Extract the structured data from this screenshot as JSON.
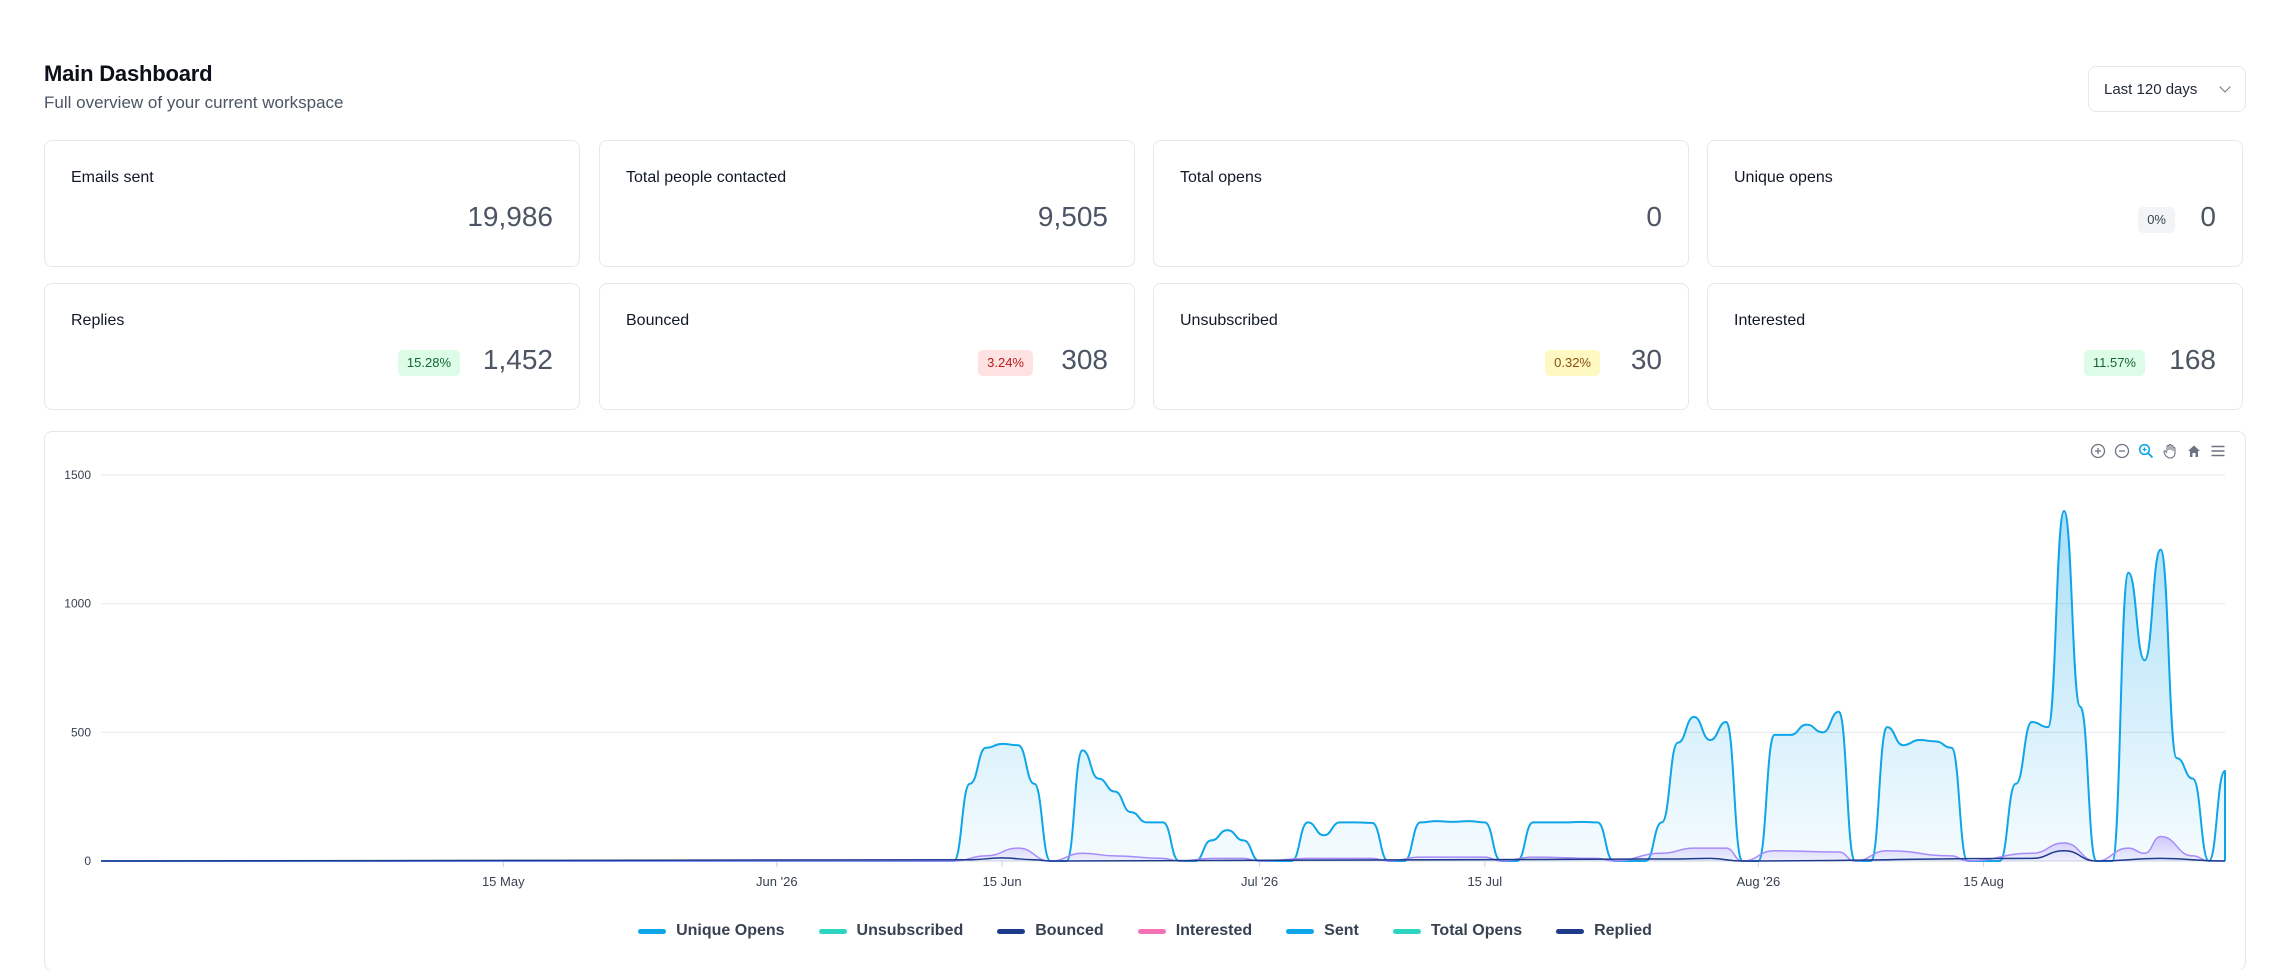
{
  "header": {
    "title": "Main Dashboard",
    "subtitle": "Full overview of your current workspace"
  },
  "range": {
    "selected": "Last 120 days"
  },
  "stats": [
    {
      "label": "Emails sent",
      "value": "19,986"
    },
    {
      "label": "Total people contacted",
      "value": "9,505"
    },
    {
      "label": "Total opens",
      "value": "0"
    },
    {
      "label": "Unique opens",
      "value": "0",
      "badge": "0%",
      "badge_style": "gray"
    },
    {
      "label": "Replies",
      "value": "1,452",
      "badge": "15.28%",
      "badge_style": "green"
    },
    {
      "label": "Bounced",
      "value": "308",
      "badge": "3.24%",
      "badge_style": "red"
    },
    {
      "label": "Unsubscribed",
      "value": "30",
      "badge": "0.32%",
      "badge_style": "yellow"
    },
    {
      "label": "Interested",
      "value": "168",
      "badge": "11.57%",
      "badge_style": "green"
    }
  ],
  "toolbar": [
    "zoom-in-icon",
    "zoom-out-icon",
    "zoom-select-icon",
    "pan-hand-icon",
    "home-reset-icon",
    "menu-icon"
  ],
  "chart_data": {
    "type": "area",
    "title": "",
    "xlabel": "",
    "ylabel": "",
    "ylim": [
      0,
      1500
    ],
    "yticks": [
      0,
      500,
      1000,
      1500
    ],
    "grid": true,
    "legend_position": "bottom",
    "x_range": [
      "2026-04-20",
      "2026-08-30"
    ],
    "x_ticks": [
      {
        "date": "2026-05-15",
        "label": "15 May"
      },
      {
        "date": "2026-06-01",
        "label": "Jun '26"
      },
      {
        "date": "2026-06-15",
        "label": "15 Jun"
      },
      {
        "date": "2026-07-01",
        "label": "Jul '26"
      },
      {
        "date": "2026-07-15",
        "label": "15 Jul"
      },
      {
        "date": "2026-08-01",
        "label": "Aug '26"
      },
      {
        "date": "2026-08-15",
        "label": "15 Aug"
      }
    ],
    "legend": [
      {
        "name": "Unique Opens",
        "color": "#0ea5e9"
      },
      {
        "name": "Unsubscribed",
        "color": "#2dd4bf"
      },
      {
        "name": "Bounced",
        "color": "#1e3a8a"
      },
      {
        "name": "Interested",
        "color": "#f472b6"
      },
      {
        "name": "Sent",
        "color": "#0ea5e9"
      },
      {
        "name": "Total Opens",
        "color": "#2dd4bf"
      },
      {
        "name": "Replied",
        "color": "#1e3a8a"
      }
    ],
    "series": [
      {
        "name": "Sent",
        "color": "#0ea5e9",
        "points": [
          [
            "2026-04-20",
            0
          ],
          [
            "2026-06-12",
            0
          ],
          [
            "2026-06-13",
            300
          ],
          [
            "2026-06-14",
            440
          ],
          [
            "2026-06-15",
            455
          ],
          [
            "2026-06-16",
            450
          ],
          [
            "2026-06-17",
            300
          ],
          [
            "2026-06-18",
            0
          ],
          [
            "2026-06-19",
            0
          ],
          [
            "2026-06-20",
            430
          ],
          [
            "2026-06-21",
            320
          ],
          [
            "2026-06-22",
            270
          ],
          [
            "2026-06-23",
            190
          ],
          [
            "2026-06-24",
            150
          ],
          [
            "2026-06-25",
            150
          ],
          [
            "2026-06-26",
            0
          ],
          [
            "2026-06-27",
            0
          ],
          [
            "2026-06-28",
            80
          ],
          [
            "2026-06-29",
            120
          ],
          [
            "2026-06-30",
            80
          ],
          [
            "2026-07-01",
            0
          ],
          [
            "2026-07-03",
            0
          ],
          [
            "2026-07-04",
            150
          ],
          [
            "2026-07-05",
            100
          ],
          [
            "2026-07-06",
            150
          ],
          [
            "2026-07-07",
            150
          ],
          [
            "2026-07-08",
            148
          ],
          [
            "2026-07-09",
            0
          ],
          [
            "2026-07-10",
            0
          ],
          [
            "2026-07-11",
            150
          ],
          [
            "2026-07-12",
            155
          ],
          [
            "2026-07-13",
            152
          ],
          [
            "2026-07-14",
            155
          ],
          [
            "2026-07-15",
            150
          ],
          [
            "2026-07-16",
            0
          ],
          [
            "2026-07-17",
            0
          ],
          [
            "2026-07-18",
            150
          ],
          [
            "2026-07-19",
            150
          ],
          [
            "2026-07-20",
            150
          ],
          [
            "2026-07-21",
            152
          ],
          [
            "2026-07-22",
            150
          ],
          [
            "2026-07-23",
            0
          ],
          [
            "2026-07-25",
            0
          ],
          [
            "2026-07-26",
            150
          ],
          [
            "2026-07-27",
            460
          ],
          [
            "2026-07-28",
            560
          ],
          [
            "2026-07-29",
            470
          ],
          [
            "2026-07-30",
            540
          ],
          [
            "2026-07-31",
            0
          ],
          [
            "2026-08-01",
            0
          ],
          [
            "2026-08-02",
            490
          ],
          [
            "2026-08-03",
            490
          ],
          [
            "2026-08-04",
            530
          ],
          [
            "2026-08-05",
            500
          ],
          [
            "2026-08-06",
            580
          ],
          [
            "2026-08-07",
            0
          ],
          [
            "2026-08-08",
            0
          ],
          [
            "2026-08-09",
            520
          ],
          [
            "2026-08-10",
            450
          ],
          [
            "2026-08-11",
            470
          ],
          [
            "2026-08-12",
            465
          ],
          [
            "2026-08-13",
            440
          ],
          [
            "2026-08-14",
            0
          ],
          [
            "2026-08-16",
            0
          ],
          [
            "2026-08-17",
            300
          ],
          [
            "2026-08-18",
            540
          ],
          [
            "2026-08-19",
            520
          ],
          [
            "2026-08-20",
            1360
          ],
          [
            "2026-08-21",
            600
          ],
          [
            "2026-08-22",
            0
          ],
          [
            "2026-08-23",
            0
          ],
          [
            "2026-08-24",
            1120
          ],
          [
            "2026-08-25",
            780
          ],
          [
            "2026-08-26",
            1210
          ],
          [
            "2026-08-27",
            400
          ],
          [
            "2026-08-28",
            320
          ],
          [
            "2026-08-29",
            0
          ],
          [
            "2026-08-29",
            0
          ],
          [
            "2026-08-30",
            350
          ],
          [
            "2026-08-30",
            0
          ]
        ]
      },
      {
        "name": "Replied",
        "color": "#a78bfa",
        "points": [
          [
            "2026-04-20",
            0
          ],
          [
            "2026-06-12",
            0
          ],
          [
            "2026-06-14",
            20
          ],
          [
            "2026-06-16",
            50
          ],
          [
            "2026-06-18",
            0
          ],
          [
            "2026-06-20",
            30
          ],
          [
            "2026-06-22",
            20
          ],
          [
            "2026-06-25",
            10
          ],
          [
            "2026-06-26",
            0
          ],
          [
            "2026-06-28",
            10
          ],
          [
            "2026-06-30",
            10
          ],
          [
            "2026-07-01",
            0
          ],
          [
            "2026-07-04",
            10
          ],
          [
            "2026-07-08",
            10
          ],
          [
            "2026-07-09",
            0
          ],
          [
            "2026-07-11",
            15
          ],
          [
            "2026-07-15",
            15
          ],
          [
            "2026-07-16",
            0
          ],
          [
            "2026-07-18",
            15
          ],
          [
            "2026-07-22",
            10
          ],
          [
            "2026-07-23",
            0
          ],
          [
            "2026-07-26",
            30
          ],
          [
            "2026-07-28",
            50
          ],
          [
            "2026-07-30",
            50
          ],
          [
            "2026-07-31",
            0
          ],
          [
            "2026-08-02",
            40
          ],
          [
            "2026-08-06",
            35
          ],
          [
            "2026-08-07",
            0
          ],
          [
            "2026-08-09",
            40
          ],
          [
            "2026-08-13",
            20
          ],
          [
            "2026-08-14",
            0
          ],
          [
            "2026-08-18",
            30
          ],
          [
            "2026-08-20",
            70
          ],
          [
            "2026-08-22",
            0
          ],
          [
            "2026-08-24",
            50
          ],
          [
            "2026-08-25",
            30
          ],
          [
            "2026-08-26",
            95
          ],
          [
            "2026-08-28",
            20
          ],
          [
            "2026-08-29",
            0
          ],
          [
            "2026-08-30",
            0
          ]
        ]
      },
      {
        "name": "Bounced",
        "color": "#1e3a8a",
        "points": [
          [
            "2026-04-20",
            0
          ],
          [
            "2026-06-13",
            5
          ],
          [
            "2026-06-15",
            12
          ],
          [
            "2026-06-17",
            5
          ],
          [
            "2026-06-18",
            0
          ],
          [
            "2026-07-27",
            8
          ],
          [
            "2026-07-29",
            10
          ],
          [
            "2026-07-31",
            0
          ],
          [
            "2026-08-18",
            10
          ],
          [
            "2026-08-20",
            40
          ],
          [
            "2026-08-22",
            0
          ],
          [
            "2026-08-26",
            10
          ],
          [
            "2026-08-30",
            0
          ]
        ]
      }
    ]
  }
}
